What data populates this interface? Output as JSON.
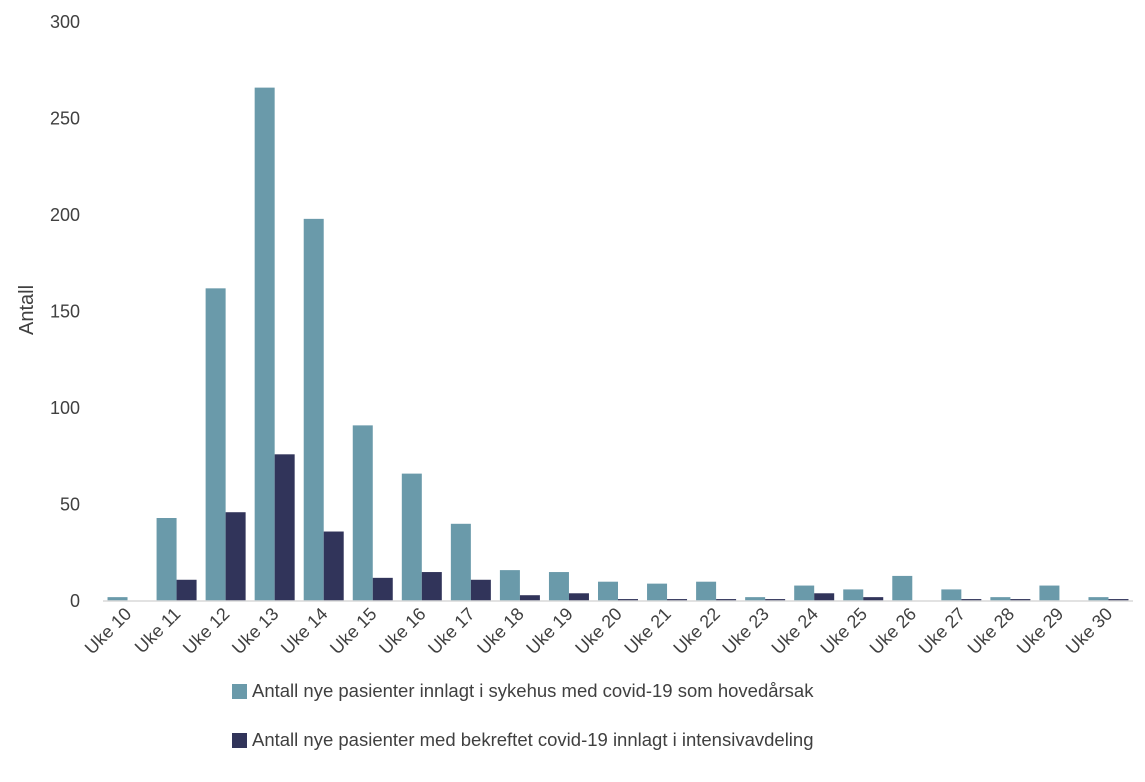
{
  "chart_data": {
    "type": "bar",
    "title": "",
    "xlabel": "",
    "ylabel": "Antall",
    "ylim": [
      0,
      300
    ],
    "yticks": [
      0,
      50,
      100,
      150,
      200,
      250,
      300
    ],
    "grid": false,
    "legend_position": "bottom",
    "categories": [
      "Uke 10",
      "Uke 11",
      "Uke 12",
      "Uke 13",
      "Uke 14",
      "Uke 15",
      "Uke 16",
      "Uke 17",
      "Uke 18",
      "Uke 19",
      "Uke 20",
      "Uke 21",
      "Uke 22",
      "Uke 23",
      "Uke 24",
      "Uke 25",
      "Uke 26",
      "Uke 27",
      "Uke 28",
      "Uke 29",
      "Uke 30"
    ],
    "series": [
      {
        "name": "Antall nye pasienter innlagt i sykehus med covid-19 som hovedårsak",
        "color": "#6a9aaa",
        "values": [
          2,
          43,
          162,
          266,
          198,
          91,
          66,
          40,
          16,
          15,
          10,
          9,
          10,
          2,
          8,
          6,
          13,
          6,
          2,
          8,
          2
        ]
      },
      {
        "name": "Antall nye pasienter med bekreftet covid-19 innlagt i intensivavdeling",
        "color": "#31345a",
        "values": [
          0,
          11,
          46,
          76,
          36,
          12,
          15,
          11,
          3,
          4,
          1,
          1,
          1,
          1,
          4,
          2,
          0,
          1,
          1,
          0,
          1
        ]
      }
    ]
  }
}
